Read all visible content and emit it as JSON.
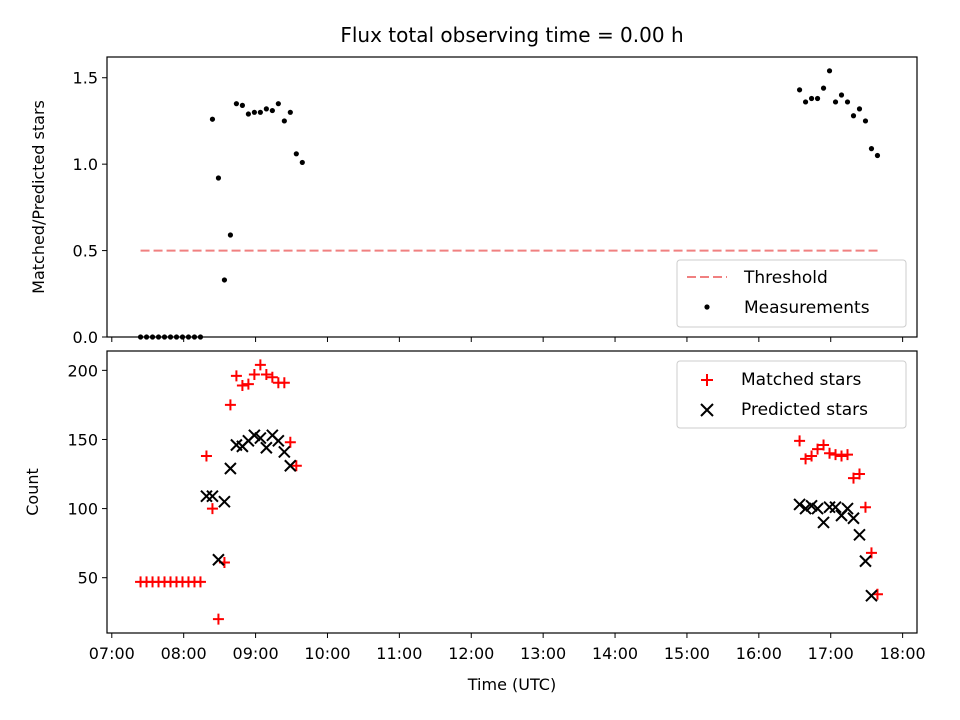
{
  "chart_data": {
    "type": "scatter",
    "title": "Flux total observing time = 0.00 h",
    "xlabel": "Time (UTC)",
    "x_ticks": [
      "07:00",
      "08:00",
      "09:00",
      "10:00",
      "11:00",
      "12:00",
      "13:00",
      "14:00",
      "15:00",
      "16:00",
      "17:00",
      "18:00"
    ],
    "xlim": [
      "06:56",
      "18:12"
    ],
    "panels": [
      {
        "ylabel": "Matched/Predicted stars",
        "ylim": [
          0,
          1.62
        ],
        "y_ticks": [
          "0.0",
          "0.5",
          "1.0",
          "1.5"
        ],
        "y_tick_values": [
          0,
          0.5,
          1.0,
          1.5
        ],
        "legend_position": "bottom-right",
        "threshold": {
          "name": "Threshold",
          "value": 0.5,
          "x_range": [
            "07:24",
            "17:42"
          ],
          "color": "#f08080"
        },
        "series": [
          {
            "name": "Measurements",
            "marker": "dot",
            "color": "#000000",
            "points": [
              [
                "07:24",
                0
              ],
              [
                "07:29",
                0
              ],
              [
                "07:34",
                0
              ],
              [
                "07:39",
                0
              ],
              [
                "07:44",
                0
              ],
              [
                "07:49",
                0
              ],
              [
                "07:54",
                0
              ],
              [
                "07:59",
                0
              ],
              [
                "08:04",
                0
              ],
              [
                "08:09",
                0
              ],
              [
                "08:14",
                0
              ],
              [
                "08:24",
                1.26
              ],
              [
                "08:29",
                0.92
              ],
              [
                "08:34",
                0.33
              ],
              [
                "08:39",
                0.59
              ],
              [
                "08:44",
                1.35
              ],
              [
                "08:49",
                1.34
              ],
              [
                "08:54",
                1.29
              ],
              [
                "08:59",
                1.3
              ],
              [
                "09:04",
                1.3
              ],
              [
                "09:09",
                1.32
              ],
              [
                "09:14",
                1.31
              ],
              [
                "09:19",
                1.35
              ],
              [
                "09:24",
                1.25
              ],
              [
                "09:29",
                1.3
              ],
              [
                "09:34",
                1.06
              ],
              [
                "09:39",
                1.01
              ],
              [
                "16:34",
                1.43
              ],
              [
                "16:39",
                1.36
              ],
              [
                "16:44",
                1.38
              ],
              [
                "16:49",
                1.38
              ],
              [
                "16:54",
                1.44
              ],
              [
                "16:59",
                1.54
              ],
              [
                "17:04",
                1.36
              ],
              [
                "17:09",
                1.4
              ],
              [
                "17:14",
                1.36
              ],
              [
                "17:19",
                1.28
              ],
              [
                "17:24",
                1.32
              ],
              [
                "17:29",
                1.25
              ],
              [
                "17:34",
                1.09
              ],
              [
                "17:39",
                1.05
              ]
            ]
          }
        ]
      },
      {
        "ylabel": "Count",
        "ylim": [
          10,
          214
        ],
        "y_ticks": [
          "50",
          "100",
          "150",
          "200"
        ],
        "y_tick_values": [
          50,
          100,
          150,
          200
        ],
        "legend_position": "top-right",
        "series": [
          {
            "name": "Matched stars",
            "marker": "plus",
            "color": "#ff0000",
            "points": [
              [
                "07:24",
                47
              ],
              [
                "07:29",
                47
              ],
              [
                "07:34",
                47
              ],
              [
                "07:39",
                47
              ],
              [
                "07:44",
                47
              ],
              [
                "07:49",
                47
              ],
              [
                "07:54",
                47
              ],
              [
                "07:59",
                47
              ],
              [
                "08:04",
                47
              ],
              [
                "08:09",
                47
              ],
              [
                "08:14",
                47
              ],
              [
                "08:19",
                138
              ],
              [
                "08:24",
                100
              ],
              [
                "08:29",
                20
              ],
              [
                "08:34",
                61
              ],
              [
                "08:39",
                175
              ],
              [
                "08:44",
                196
              ],
              [
                "08:49",
                189
              ],
              [
                "08:54",
                190
              ],
              [
                "08:59",
                197
              ],
              [
                "09:04",
                204
              ],
              [
                "09:09",
                197
              ],
              [
                "09:14",
                195
              ],
              [
                "09:19",
                191
              ],
              [
                "09:24",
                191
              ],
              [
                "09:29",
                148
              ],
              [
                "09:34",
                131
              ],
              [
                "16:34",
                149
              ],
              [
                "16:39",
                136
              ],
              [
                "16:44",
                138
              ],
              [
                "16:49",
                143
              ],
              [
                "16:54",
                146
              ],
              [
                "16:59",
                140
              ],
              [
                "17:04",
                139
              ],
              [
                "17:09",
                138
              ],
              [
                "17:14",
                139
              ],
              [
                "17:19",
                122
              ],
              [
                "17:24",
                125
              ],
              [
                "17:29",
                101
              ],
              [
                "17:34",
                68
              ],
              [
                "17:39",
                38
              ]
            ]
          },
          {
            "name": "Predicted stars",
            "marker": "x",
            "color": "#000000",
            "points": [
              [
                "08:19",
                109
              ],
              [
                "08:24",
                109
              ],
              [
                "08:29",
                63
              ],
              [
                "08:34",
                105
              ],
              [
                "08:39",
                129
              ],
              [
                "08:44",
                146
              ],
              [
                "08:49",
                145
              ],
              [
                "08:54",
                149
              ],
              [
                "08:59",
                153
              ],
              [
                "09:04",
                151
              ],
              [
                "09:09",
                144
              ],
              [
                "09:14",
                153
              ],
              [
                "09:19",
                149
              ],
              [
                "09:24",
                141
              ],
              [
                "09:29",
                131
              ],
              [
                "16:34",
                103
              ],
              [
                "16:39",
                100
              ],
              [
                "16:44",
                102
              ],
              [
                "16:49",
                100
              ],
              [
                "16:54",
                90
              ],
              [
                "16:59",
                101
              ],
              [
                "17:04",
                101
              ],
              [
                "17:09",
                95
              ],
              [
                "17:14",
                100
              ],
              [
                "17:19",
                93
              ],
              [
                "17:24",
                81
              ],
              [
                "17:29",
                62
              ],
              [
                "17:34",
                37
              ]
            ]
          }
        ]
      }
    ]
  }
}
